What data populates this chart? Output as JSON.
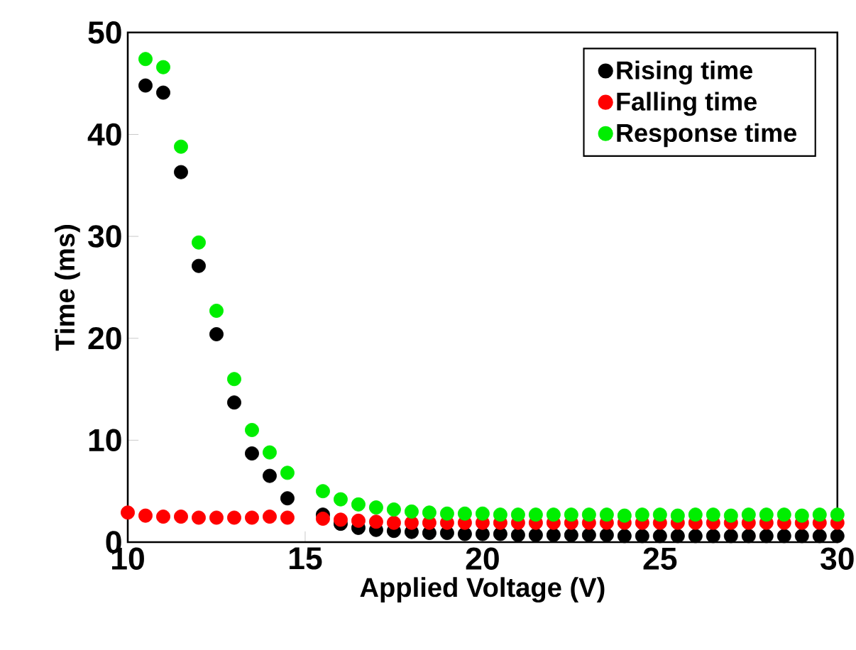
{
  "chart_data": {
    "type": "scatter",
    "xlabel": "Applied Voltage (V)",
    "ylabel": "Time (ms)",
    "xlim": [
      10,
      30
    ],
    "ylim": [
      0,
      50
    ],
    "xticks": [
      10,
      15,
      20,
      25,
      30
    ],
    "yticks": [
      0,
      10,
      20,
      30,
      40,
      50
    ],
    "legend": "top right",
    "marker": "circle",
    "grid": false,
    "series": [
      {
        "name": "Rising time",
        "color": "#000000",
        "x": [
          10.5,
          11,
          11.5,
          12,
          12.5,
          13,
          13.5,
          14,
          14.5,
          15.5,
          16,
          16.5,
          17,
          17.5,
          18,
          18.5,
          19,
          19.5,
          20,
          20.5,
          21,
          21.5,
          22,
          22.5,
          23,
          23.5,
          24,
          24.5,
          25,
          25.5,
          26,
          26.5,
          27,
          27.5,
          28,
          28.5,
          29,
          29.5,
          30
        ],
        "values": [
          44.8,
          44.1,
          36.3,
          27.1,
          20.4,
          13.7,
          8.7,
          6.5,
          4.3,
          2.7,
          1.8,
          1.4,
          1.2,
          1.1,
          1.0,
          0.9,
          0.9,
          0.8,
          0.8,
          0.8,
          0.7,
          0.7,
          0.7,
          0.7,
          0.7,
          0.7,
          0.6,
          0.6,
          0.6,
          0.6,
          0.6,
          0.6,
          0.6,
          0.6,
          0.6,
          0.6,
          0.6,
          0.6,
          0.6
        ]
      },
      {
        "name": "Falling time",
        "color": "#ff0000",
        "x": [
          10,
          10.5,
          11,
          11.5,
          12,
          12.5,
          13,
          13.5,
          14,
          14.5,
          15.5,
          16,
          16.5,
          17,
          17.5,
          18,
          18.5,
          19,
          19.5,
          20,
          20.5,
          21,
          21.5,
          22,
          22.5,
          23,
          23.5,
          24,
          24.5,
          25,
          25.5,
          26,
          26.5,
          27,
          27.5,
          28,
          28.5,
          29,
          29.5,
          30
        ],
        "values": [
          2.9,
          2.6,
          2.5,
          2.5,
          2.4,
          2.4,
          2.4,
          2.4,
          2.5,
          2.4,
          2.3,
          2.2,
          2.1,
          2.0,
          1.9,
          1.9,
          1.9,
          1.9,
          1.9,
          1.9,
          1.9,
          1.9,
          1.9,
          1.9,
          1.9,
          1.9,
          1.9,
          1.9,
          1.9,
          1.9,
          1.9,
          1.9,
          1.9,
          1.9,
          1.9,
          1.9,
          1.9,
          1.9,
          1.9,
          1.9
        ]
      },
      {
        "name": "Response time",
        "color": "#00ee00",
        "x": [
          10.5,
          11,
          11.5,
          12,
          12.5,
          13,
          13.5,
          14,
          14.5,
          15.5,
          16,
          16.5,
          17,
          17.5,
          18,
          18.5,
          19,
          19.5,
          20,
          20.5,
          21,
          21.5,
          22,
          22.5,
          23,
          23.5,
          24,
          24.5,
          25,
          25.5,
          26,
          26.5,
          27,
          27.5,
          28,
          28.5,
          29,
          29.5,
          30
        ],
        "values": [
          47.4,
          46.6,
          38.8,
          29.4,
          22.7,
          16.0,
          11.0,
          8.8,
          6.8,
          5.0,
          4.2,
          3.7,
          3.4,
          3.2,
          3.0,
          2.9,
          2.8,
          2.8,
          2.8,
          2.7,
          2.7,
          2.7,
          2.7,
          2.7,
          2.7,
          2.7,
          2.6,
          2.7,
          2.7,
          2.6,
          2.7,
          2.7,
          2.6,
          2.7,
          2.7,
          2.7,
          2.6,
          2.7,
          2.7
        ]
      }
    ]
  }
}
